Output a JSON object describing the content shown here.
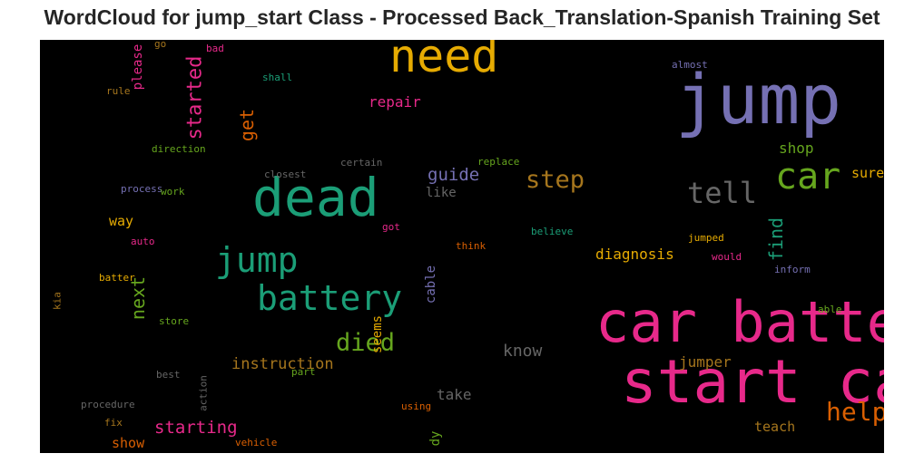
{
  "chart_data": {
    "type": "wordcloud",
    "title": "WordCloud for jump_start Class - Processed Back_Translation-Spanish Training Set",
    "background": "#000000",
    "palette": {
      "purple": "#7570b3",
      "pink": "#e7298a",
      "teal": "#1b9e77",
      "orange": "#d95f02",
      "green": "#66a61e",
      "gold": "#e6ab02",
      "brown": "#a6761d",
      "gray": "#666666"
    },
    "words": [
      {
        "text": "jump start",
        "color": "#7570b3"
      },
      {
        "text": "car battery",
        "color": "#e7298a"
      },
      {
        "text": "start car",
        "color": "#e7298a"
      },
      {
        "text": "dead",
        "color": "#1b9e77"
      },
      {
        "text": "need",
        "color": "#e6ab02"
      },
      {
        "text": "battery",
        "color": "#1b9e77"
      },
      {
        "text": "jump",
        "color": "#1b9e77"
      },
      {
        "text": "car",
        "color": "#66a61e"
      },
      {
        "text": "tell",
        "color": "#666666"
      },
      {
        "text": "help",
        "color": "#d95f02"
      },
      {
        "text": "step",
        "color": "#a6761d"
      },
      {
        "text": "died",
        "color": "#66a61e"
      },
      {
        "text": "started",
        "color": "#e7298a"
      },
      {
        "text": "guide",
        "color": "#7570b3"
      },
      {
        "text": "next",
        "color": "#66a61e"
      },
      {
        "text": "get",
        "color": "#d95f02"
      },
      {
        "text": "find",
        "color": "#1b9e77"
      },
      {
        "text": "starting",
        "color": "#e7298a"
      },
      {
        "text": "instruction",
        "color": "#a6761d"
      },
      {
        "text": "know",
        "color": "#666666"
      },
      {
        "text": "jumper",
        "color": "#a6761d"
      },
      {
        "text": "diagnosis",
        "color": "#e6ab02"
      },
      {
        "text": "shop",
        "color": "#66a61e"
      },
      {
        "text": "repair",
        "color": "#e7298a"
      },
      {
        "text": "take",
        "color": "#666666"
      },
      {
        "text": "teach",
        "color": "#a6761d"
      },
      {
        "text": "sure",
        "color": "#e6ab02"
      },
      {
        "text": "please",
        "color": "#e7298a"
      },
      {
        "text": "way",
        "color": "#e6ab02"
      },
      {
        "text": "seems",
        "color": "#e6ab02"
      },
      {
        "text": "cable",
        "color": "#7570b3"
      },
      {
        "text": "show",
        "color": "#d95f02"
      },
      {
        "text": "like",
        "color": "#666666"
      },
      {
        "text": "dy",
        "color": "#66a61e"
      },
      {
        "text": "almost",
        "color": "#7570b3"
      },
      {
        "text": "shall",
        "color": "#1b9e77"
      },
      {
        "text": "rule",
        "color": "#a6761d"
      },
      {
        "text": "go",
        "color": "#a6761d"
      },
      {
        "text": "bad",
        "color": "#e7298a"
      },
      {
        "text": "direction",
        "color": "#66a61e"
      },
      {
        "text": "closest",
        "color": "#666666"
      },
      {
        "text": "certain",
        "color": "#666666"
      },
      {
        "text": "replace",
        "color": "#66a61e"
      },
      {
        "text": "process",
        "color": "#7570b3"
      },
      {
        "text": "work",
        "color": "#66a61e"
      },
      {
        "text": "auto",
        "color": "#e7298a"
      },
      {
        "text": "got",
        "color": "#e7298a"
      },
      {
        "text": "believe",
        "color": "#1b9e77"
      },
      {
        "text": "think",
        "color": "#d95f02"
      },
      {
        "text": "jumped",
        "color": "#e6ab02"
      },
      {
        "text": "would",
        "color": "#e7298a"
      },
      {
        "text": "inform",
        "color": "#7570b3"
      },
      {
        "text": "batter",
        "color": "#e6ab02"
      },
      {
        "text": "kia",
        "color": "#a6761d"
      },
      {
        "text": "store",
        "color": "#66a61e"
      },
      {
        "text": "able",
        "color": "#66a61e"
      },
      {
        "text": "best",
        "color": "#666666"
      },
      {
        "text": "part",
        "color": "#66a61e"
      },
      {
        "text": "procedure",
        "color": "#666666"
      },
      {
        "text": "action",
        "color": "#666666"
      },
      {
        "text": "using",
        "color": "#d95f02"
      },
      {
        "text": "fix",
        "color": "#a6761d"
      },
      {
        "text": "vehicle",
        "color": "#d95f02"
      }
    ]
  }
}
